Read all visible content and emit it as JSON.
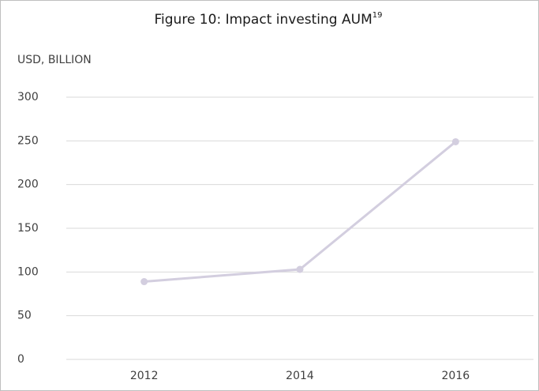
{
  "chart_data": {
    "type": "line",
    "title": "Figure 10: Impact investing AUM",
    "title_superscript": "19",
    "y_axis_label": "USD, BILLION",
    "categories": [
      "2012",
      "2014",
      "2016"
    ],
    "values": [
      89,
      103,
      249
    ],
    "color": "#d3cedf",
    "ylim": [
      0,
      300
    ],
    "yticks": [
      0,
      50,
      100,
      150,
      200,
      250,
      300
    ],
    "grid": true
  }
}
